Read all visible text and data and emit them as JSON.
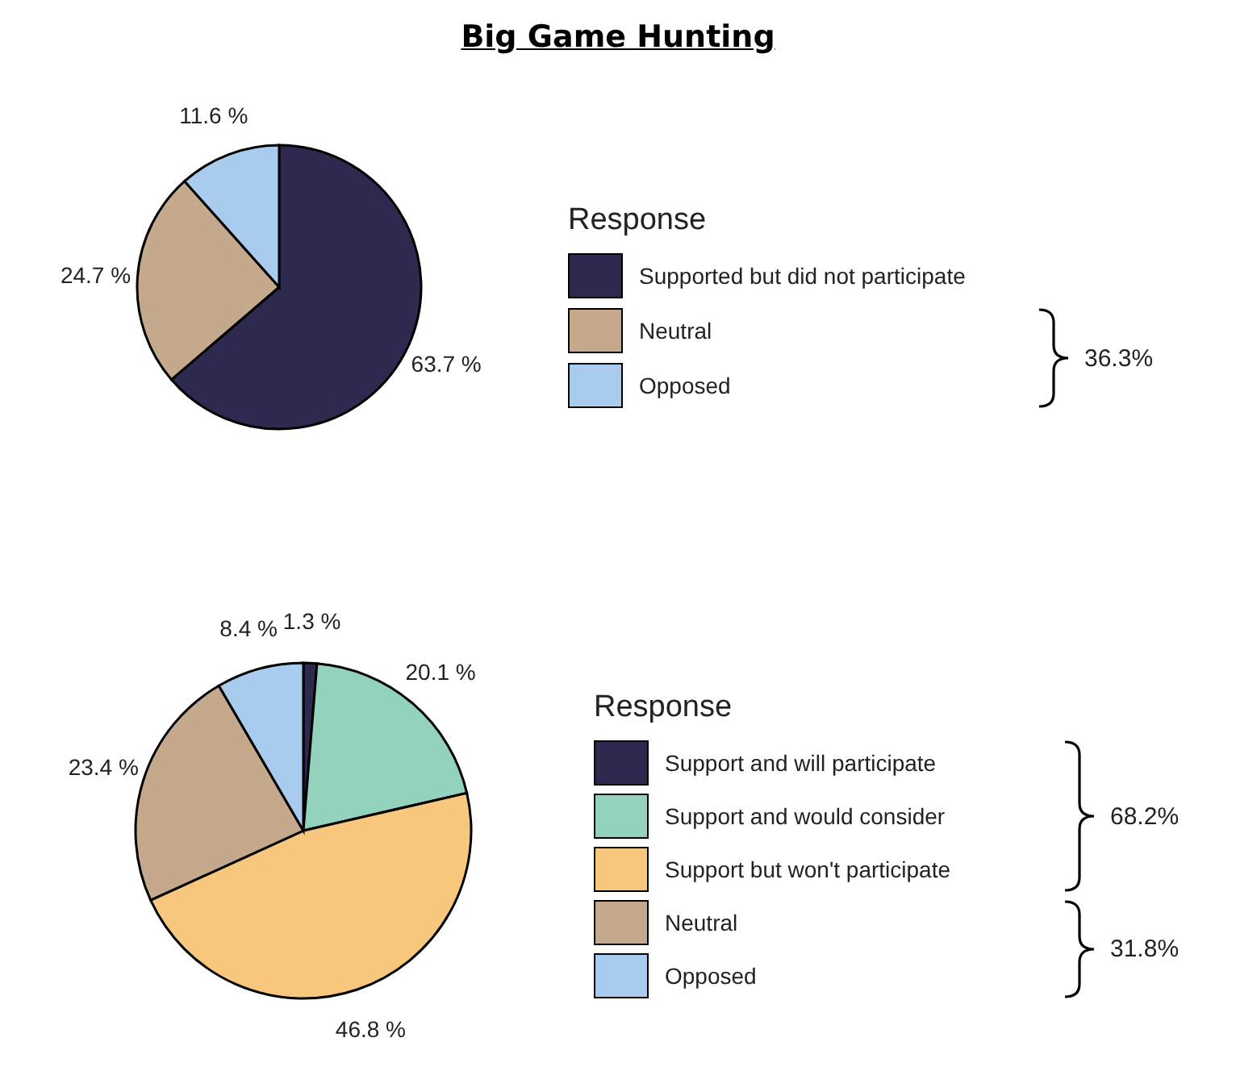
{
  "chart_data": [
    {
      "type": "pie",
      "title": "Big Game Hunting",
      "legend_title": "Response",
      "legend": "right",
      "categories": [
        "Supported but did not participate",
        "Neutral",
        "Opposed"
      ],
      "values": [
        63.7,
        24.7,
        11.6
      ],
      "colors": [
        "#2e2a4f",
        "#c4a98c",
        "#a9cbee"
      ],
      "value_labels": [
        "63.7 %",
        "24.7 %",
        "11.6 %"
      ],
      "annotations": [
        "36.3%"
      ]
    },
    {
      "type": "pie",
      "legend_title": "Response",
      "legend": "right",
      "categories": [
        "Support and will participate",
        "Support and would consider",
        "Support but won't participate",
        "Neutral",
        "Opposed"
      ],
      "values": [
        1.3,
        20.1,
        46.8,
        23.4,
        8.4
      ],
      "colors": [
        "#2e2a4f",
        "#93d3bd",
        "#f8c77e",
        "#c4a98c",
        "#a9cbee"
      ],
      "value_labels": [
        "1.3 %",
        "20.1 %",
        "46.8 %",
        "23.4 %",
        "8.4 %"
      ],
      "annotations": [
        "68.2%",
        "31.8%"
      ]
    }
  ]
}
